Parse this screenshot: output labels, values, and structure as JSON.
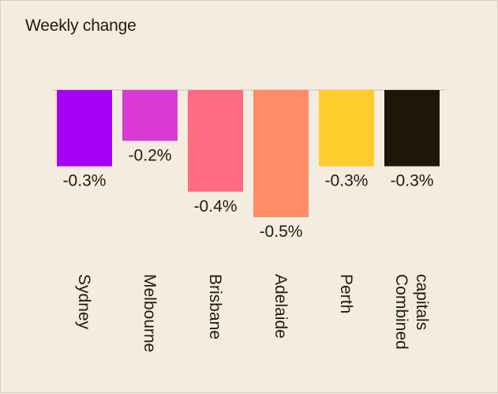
{
  "chart_data": {
    "type": "bar",
    "title": "Weekly change",
    "categories": [
      "Sydney",
      "Melbourne",
      "Brisbane",
      "Adelaide",
      "Perth",
      "Combined capitals"
    ],
    "category_lines": [
      [
        "Sydney"
      ],
      [
        "Melbourne"
      ],
      [
        "Brisbane"
      ],
      [
        "Adelaide"
      ],
      [
        "Perth"
      ],
      [
        "Combined",
        "capitals"
      ]
    ],
    "values": [
      -0.3,
      -0.2,
      -0.4,
      -0.5,
      -0.3,
      -0.3
    ],
    "data_labels": [
      "-0.3%",
      "-0.2%",
      "-0.4%",
      "-0.5%",
      "-0.3%",
      "-0.3%"
    ],
    "colors": [
      "#a800f5",
      "#d93ad4",
      "#ff6b82",
      "#ff8c66",
      "#ffcc2e",
      "#1f1608"
    ],
    "ylim": [
      -0.5,
      0
    ],
    "value_unit": "%",
    "grid": false,
    "legend": false,
    "xlabel": "",
    "ylabel": ""
  }
}
